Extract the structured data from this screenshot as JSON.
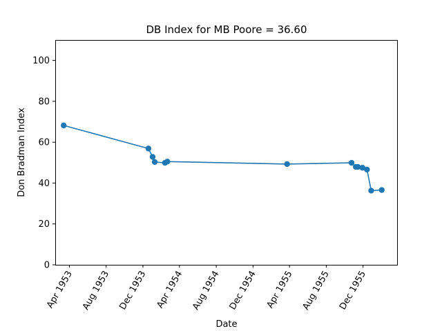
{
  "chart_data": {
    "type": "line",
    "title": "DB Index for MB Poore = 36.60",
    "xlabel": "Date",
    "ylabel": "Don Bradman Index",
    "x_ticks": [
      "Apr 1953",
      "Aug 1953",
      "Dec 1953",
      "Apr 1954",
      "Aug 1954",
      "Dec 1954",
      "Apr 1955",
      "Aug 1955",
      "Dec 1955"
    ],
    "x_tick_dates": [
      "1953-04-01",
      "1953-08-01",
      "1953-12-01",
      "1954-04-01",
      "1954-08-01",
      "1954-12-01",
      "1955-04-01",
      "1955-08-01",
      "1955-12-01"
    ],
    "y_ticks": [
      0,
      20,
      40,
      60,
      80,
      100
    ],
    "xlim": [
      "1953-02-13",
      "1956-03-23"
    ],
    "ylim": [
      0,
      110
    ],
    "grid": false,
    "color": "#1f77b4",
    "marker": "circle",
    "series": [
      {
        "points": [
          {
            "x": "1953-03-13",
            "y": 68.2
          },
          {
            "x": "1953-12-19",
            "y": 56.9
          },
          {
            "x": "1954-01-02",
            "y": 52.8
          },
          {
            "x": "1954-01-09",
            "y": 50.3
          },
          {
            "x": "1954-02-12",
            "y": 49.9
          },
          {
            "x": "1954-02-20",
            "y": 50.5
          },
          {
            "x": "1955-03-24",
            "y": 49.3
          },
          {
            "x": "1955-10-24",
            "y": 49.9
          },
          {
            "x": "1955-11-07",
            "y": 47.9
          },
          {
            "x": "1955-11-14",
            "y": 47.9
          },
          {
            "x": "1955-11-29",
            "y": 47.5
          },
          {
            "x": "1955-12-14",
            "y": 46.6
          },
          {
            "x": "1955-12-28",
            "y": 36.3
          },
          {
            "x": "1956-02-01",
            "y": 36.6
          }
        ]
      }
    ]
  }
}
